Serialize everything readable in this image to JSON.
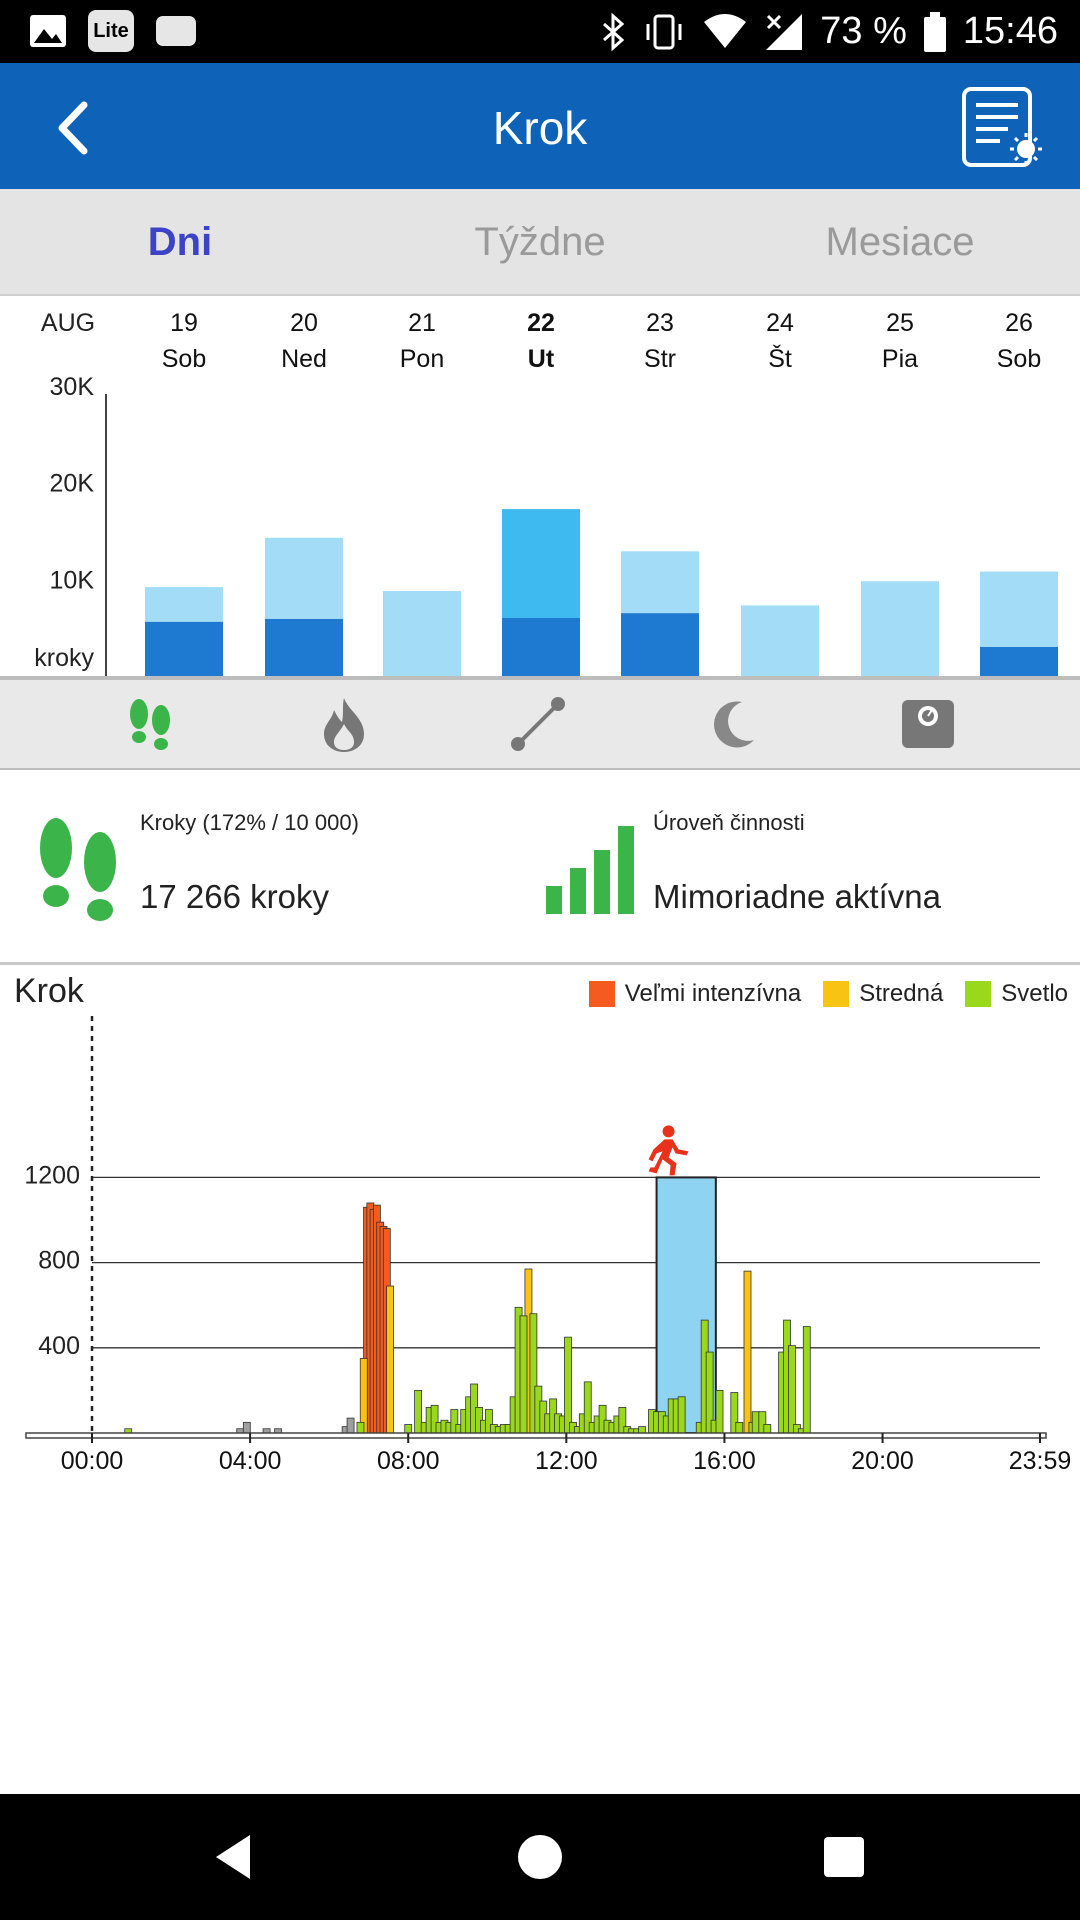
{
  "status_bar": {
    "lite_badge": "Lite",
    "battery_percent": "73 %",
    "time": "15:46",
    "icons": [
      "image-icon",
      "lite-icon",
      "chat-icon",
      "bluetooth-icon",
      "vibrate-icon",
      "wifi-icon",
      "no-signal-icon",
      "battery-icon"
    ]
  },
  "app_bar": {
    "title": "Krok",
    "back_icon": "chevron-left-icon",
    "report_icon": "report-brightness-icon"
  },
  "period_tabs": [
    {
      "label": "Dni",
      "active": true
    },
    {
      "label": "Týždne",
      "active": false
    },
    {
      "label": "Mesiace",
      "active": false
    }
  ],
  "week": {
    "month": "AUG",
    "days": [
      {
        "date": "19",
        "day": "Sob",
        "selected": false
      },
      {
        "date": "20",
        "day": "Ned",
        "selected": false
      },
      {
        "date": "21",
        "day": "Pon",
        "selected": false
      },
      {
        "date": "22",
        "day": "Ut",
        "selected": true
      },
      {
        "date": "23",
        "day": "Str",
        "selected": false
      },
      {
        "date": "24",
        "day": "Št",
        "selected": false
      },
      {
        "date": "25",
        "day": "Pia",
        "selected": false
      },
      {
        "date": "26",
        "day": "Sob",
        "selected": false
      }
    ],
    "y_ticks": [
      "30K",
      "20K",
      "10K"
    ],
    "unit_label": "kroky"
  },
  "metric_tabs": [
    {
      "icon": "footsteps-icon",
      "active": true
    },
    {
      "icon": "flame-icon",
      "active": false
    },
    {
      "icon": "distance-icon",
      "active": false
    },
    {
      "icon": "moon-icon",
      "active": false
    },
    {
      "icon": "scale-icon",
      "active": false
    }
  ],
  "summary": {
    "steps_label": "Kroky (172% / 10 000)",
    "steps_value": "17 266 kroky",
    "level_label": "Úroveň činnosti",
    "level_value": "Mimoriadne aktívna"
  },
  "daily": {
    "title": "Krok",
    "legend": [
      {
        "label": "Veľmi intenzívna",
        "color": "#f55a1e"
      },
      {
        "label": "Stredná",
        "color": "#f9c313"
      },
      {
        "label": "Svetlo",
        "color": "#9ad81b"
      }
    ]
  },
  "colors": {
    "app_bar": "#0e62b8",
    "active_tab": "#3b43c6",
    "bar_light": "#a2dcf7",
    "bar_dark": "#1e79d0",
    "bar_selected": "#3ebaf1",
    "green_icon": "#3bb54a",
    "very_intense": "#f55a1e",
    "moderate": "#f9c313",
    "light": "#9ad81b",
    "running_icon": "#e8321b",
    "selection_box": "#8fd3f2"
  },
  "chart_data": [
    {
      "type": "bar",
      "stacked": true,
      "categories": [
        "19",
        "20",
        "21",
        "22",
        "23",
        "24",
        "25",
        "26"
      ],
      "series": [
        {
          "values": [
            5600,
            5900,
            0,
            6000,
            6500,
            0,
            0,
            3000
          ]
        },
        {
          "values": [
            3600,
            8400,
            8800,
            11266,
            6400,
            7300,
            9800,
            7800
          ]
        }
      ],
      "ylabel": "kroky",
      "ylim": [
        0,
        30000
      ],
      "y_ticks": [
        10000,
        20000,
        30000
      ]
    },
    {
      "type": "bar",
      "x_ticks": [
        "00:00",
        "04:00",
        "08:00",
        "12:00",
        "16:00",
        "20:00",
        "23:59"
      ],
      "y_ticks": [
        400,
        800,
        1200
      ],
      "ylim": [
        0,
        1450
      ],
      "selection_range_minutes": [
        860,
        950
      ],
      "series": [
        {
          "name": "Veľmi intenzívna",
          "points": [
            [
              835,
              1060
            ],
            [
              845,
              1080
            ],
            [
              855,
              1050
            ],
            [
              865,
              1070
            ],
            [
              875,
              990
            ],
            [
              885,
              970
            ],
            [
              895,
              960
            ]
          ]
        },
        {
          "name": "Stredná",
          "points": [
            [
              825,
              350
            ],
            [
              905,
              690
            ],
            [
              1325,
              770
            ],
            [
              1990,
              760
            ]
          ]
        },
        {
          "name": "Svetlo",
          "points": [
            [
              110,
              20
            ],
            [
              815,
              50
            ],
            [
              960,
              40
            ],
            [
              990,
              200
            ],
            [
              1010,
              50
            ],
            [
              1025,
              120
            ],
            [
              1040,
              130
            ],
            [
              1055,
              50
            ],
            [
              1070,
              60
            ],
            [
              1085,
              50
            ],
            [
              1100,
              110
            ],
            [
              1115,
              40
            ],
            [
              1130,
              110
            ],
            [
              1145,
              170
            ],
            [
              1160,
              230
            ],
            [
              1175,
              120
            ],
            [
              1190,
              60
            ],
            [
              1205,
              110
            ],
            [
              1220,
              40
            ],
            [
              1235,
              30
            ],
            [
              1250,
              40
            ],
            [
              1265,
              40
            ],
            [
              1280,
              170
            ],
            [
              1295,
              590
            ],
            [
              1310,
              550
            ],
            [
              1340,
              560
            ],
            [
              1355,
              220
            ],
            [
              1370,
              150
            ],
            [
              1385,
              90
            ],
            [
              1400,
              160
            ],
            [
              1415,
              90
            ],
            [
              1430,
              80
            ],
            [
              1445,
              450
            ],
            [
              1460,
              50
            ],
            [
              1475,
              30
            ],
            [
              1490,
              90
            ],
            [
              1505,
              240
            ],
            [
              1520,
              50
            ],
            [
              1535,
              80
            ],
            [
              1550,
              130
            ],
            [
              1565,
              60
            ],
            [
              1580,
              50
            ],
            [
              1595,
              80
            ],
            [
              1610,
              120
            ],
            [
              1625,
              30
            ],
            [
              1640,
              20
            ],
            [
              1655,
              20
            ],
            [
              1670,
              30
            ],
            [
              1700,
              110
            ],
            [
              1715,
              100
            ],
            [
              1730,
              100
            ],
            [
              1745,
              80
            ],
            [
              1760,
              160
            ],
            [
              1775,
              160
            ],
            [
              1790,
              170
            ],
            [
              1845,
              50
            ],
            [
              1860,
              530
            ],
            [
              1875,
              380
            ],
            [
              1890,
              60
            ],
            [
              1905,
              200
            ],
            [
              1950,
              190
            ],
            [
              1965,
              50
            ],
            [
              2005,
              50
            ],
            [
              2015,
              100
            ],
            [
              2035,
              100
            ],
            [
              2050,
              40
            ],
            [
              2095,
              380
            ],
            [
              2110,
              530
            ],
            [
              2125,
              410
            ],
            [
              2140,
              40
            ],
            [
              2155,
              20
            ],
            [
              2170,
              500
            ]
          ]
        },
        {
          "name": "gray",
          "points": [
            [
              450,
              20
            ],
            [
              470,
              50
            ],
            [
              530,
              20
            ],
            [
              565,
              20
            ],
            [
              770,
              30
            ],
            [
              785,
              70
            ]
          ]
        }
      ]
    }
  ]
}
